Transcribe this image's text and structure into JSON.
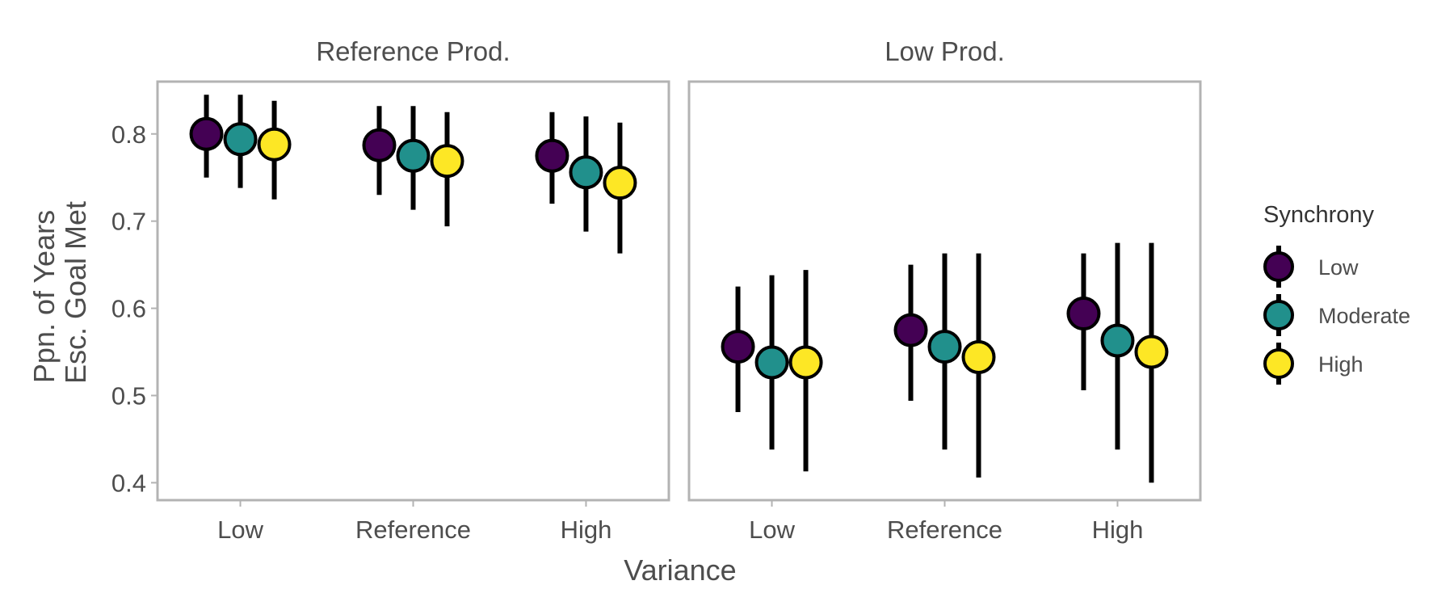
{
  "chart_data": {
    "type": "scatter",
    "subtype": "point-range, faceted",
    "xlabel": "Variance",
    "ylabel": [
      "Ppn. of Years",
      "Esc. Goal Met"
    ],
    "ylim": [
      0.38,
      0.86
    ],
    "yticks": [
      0.4,
      0.5,
      0.6,
      0.7,
      0.8
    ],
    "ytick_labels": [
      "0.4",
      "0.5",
      "0.6",
      "0.7",
      "0.8"
    ],
    "categories": [
      "Low",
      "Reference",
      "High"
    ],
    "grid": false,
    "legend": {
      "title": "Synchrony",
      "placement": "right",
      "entries": [
        "Low",
        "Moderate",
        "High"
      ]
    },
    "series_colors": {
      "Low": "#440154",
      "Moderate": "#21908c",
      "High": "#fde725"
    },
    "panels": [
      {
        "title": "Reference Prod.",
        "series": [
          {
            "name": "Low",
            "values": [
              0.8,
              0.787,
              0.775
            ],
            "lower": [
              0.75,
              0.73,
              0.72
            ],
            "upper": [
              0.845,
              0.832,
              0.825
            ]
          },
          {
            "name": "Moderate",
            "values": [
              0.794,
              0.775,
              0.756
            ],
            "lower": [
              0.738,
              0.713,
              0.688
            ],
            "upper": [
              0.845,
              0.832,
              0.82
            ]
          },
          {
            "name": "High",
            "values": [
              0.788,
              0.769,
              0.744
            ],
            "lower": [
              0.725,
              0.694,
              0.663
            ],
            "upper": [
              0.838,
              0.825,
              0.813
            ]
          }
        ]
      },
      {
        "title": "Low Prod.",
        "series": [
          {
            "name": "Low",
            "values": [
              0.556,
              0.575,
              0.594
            ],
            "lower": [
              0.481,
              0.494,
              0.506
            ],
            "upper": [
              0.625,
              0.65,
              0.663
            ]
          },
          {
            "name": "Moderate",
            "values": [
              0.538,
              0.556,
              0.563
            ],
            "lower": [
              0.438,
              0.438,
              0.438
            ],
            "upper": [
              0.638,
              0.663,
              0.675
            ]
          },
          {
            "name": "High",
            "values": [
              0.538,
              0.544,
              0.55
            ],
            "lower": [
              0.413,
              0.406,
              0.4
            ],
            "upper": [
              0.644,
              0.663,
              0.675
            ]
          }
        ]
      }
    ]
  }
}
